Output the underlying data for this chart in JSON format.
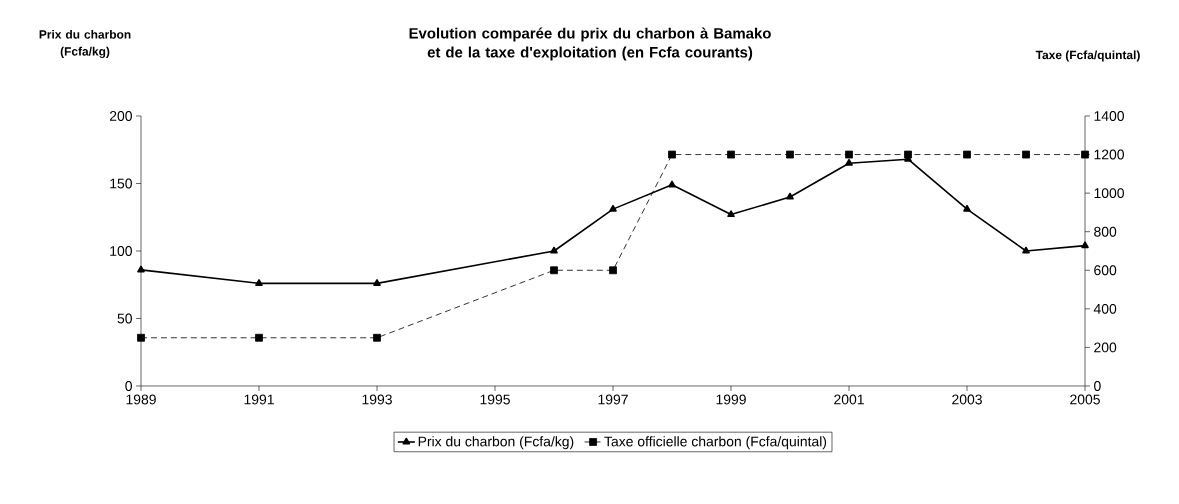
{
  "chart_data": {
    "type": "line",
    "title": "Evolution comparée du prix du charbon à Bamako et de la taxe d'exploitation (en Fcfa courants)",
    "ylabel": "Prix du charbon (Fcfa/kg)",
    "y2label": "Taxe (Fcfa/quintal)",
    "x": [
      1989,
      1991,
      1993,
      1996,
      1997,
      1998,
      1999,
      2000,
      2001,
      2002,
      2003,
      2004,
      2005
    ],
    "series": [
      {
        "name": "Prix du charbon (Fcfa/kg)",
        "color": "#000000",
        "marker": "triangle",
        "line_style": "solid",
        "values": [
          86,
          76,
          76,
          100,
          131,
          149,
          127,
          140,
          165,
          168,
          131,
          100,
          104
        ]
      },
      {
        "name": "Taxe officielle charbon (Fcfa/quintal)",
        "color": "#000000",
        "marker": "square",
        "line_style": "dashed",
        "axis": "y2",
        "values": [
          250,
          250,
          250,
          600,
          600,
          1200,
          1200,
          1200,
          1200,
          1200,
          1200,
          1200,
          1200
        ]
      }
    ],
    "xlim": [
      1989,
      2005
    ],
    "xticks": [
      1989,
      1991,
      1993,
      1995,
      1997,
      1999,
      2001,
      2003,
      2005
    ],
    "ylim": [
      0,
      200
    ],
    "yticks": [
      0,
      50,
      100,
      150,
      200
    ],
    "y2lim": [
      0,
      1400
    ],
    "y2ticks": [
      0,
      200,
      400,
      600,
      800,
      1000,
      1200,
      1400
    ],
    "grid": false,
    "legend": "bottom"
  }
}
